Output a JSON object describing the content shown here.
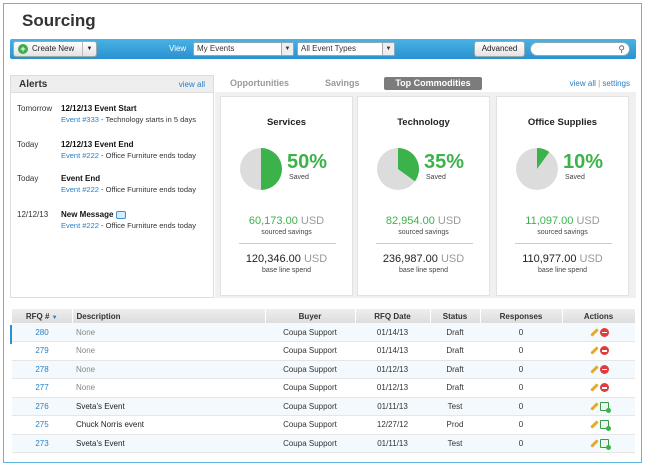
{
  "page": {
    "title": "Sourcing"
  },
  "toolbar": {
    "create_label": "Create New",
    "view_label": "View",
    "view_select": "My Events",
    "type_select": "All Event Types",
    "advanced_label": "Advanced",
    "search_value": ""
  },
  "alerts": {
    "title": "Alerts",
    "view_all": "view all",
    "items": [
      {
        "when": "Tomorrow",
        "head": "12/12/13 Event Start",
        "link": "Event #333",
        "rest": " - Technology starts in 5 days"
      },
      {
        "when": "Today",
        "head": "12/12/13 Event End",
        "link": "Event #222",
        "rest": " - Office Furniture ends today"
      },
      {
        "when": "Today",
        "head": "Event End",
        "link": "Event #222",
        "rest": " - Office Furniture ends today"
      },
      {
        "when": "12/12/13",
        "head": "New Message",
        "link": "Event #222",
        "rest": " - Office Furniture ends today"
      }
    ]
  },
  "tabs": {
    "opportunities": "Opportunities",
    "savings": "Savings",
    "top_commodities": "Top Commodities",
    "view_all": "view all",
    "separator": "|",
    "settings": "settings"
  },
  "commodities": [
    {
      "name": "Services",
      "percent": "50%",
      "fraction": 0.5,
      "saved": "Saved",
      "savings": "60,173.00",
      "savings_unit": "USD",
      "savings_label": "sourced savings",
      "base": "120,346.00",
      "base_unit": "USD",
      "base_label": "base line spend"
    },
    {
      "name": "Technology",
      "percent": "35%",
      "fraction": 0.35,
      "saved": "Saved",
      "savings": "82,954.00",
      "savings_unit": "USD",
      "savings_label": "sourced savings",
      "base": "236,987.00",
      "base_unit": "USD",
      "base_label": "base line spend"
    },
    {
      "name": "Office Supplies",
      "percent": "10%",
      "fraction": 0.1,
      "saved": "Saved",
      "savings": "11,097.00",
      "savings_unit": "USD",
      "savings_label": "sourced savings",
      "base": "110,977.00",
      "base_unit": "USD",
      "base_label": "base line spend"
    }
  ],
  "colors": {
    "accent": "#3cb34a",
    "pie_bg": "#dcdcdc",
    "toolbar": "#2a90cf",
    "link": "#2a7fc4"
  },
  "table": {
    "headers": [
      "RFQ #",
      "Description",
      "Buyer",
      "RFQ Date",
      "Status",
      "Responses",
      "Actions"
    ],
    "rows": [
      {
        "rfq": "280",
        "description": "None",
        "buyer": "Coupa Support",
        "date": "01/14/13",
        "status": "Draft",
        "responses": "0",
        "actions": [
          "pencil-icon",
          "delete-icon"
        ]
      },
      {
        "rfq": "279",
        "description": "None",
        "buyer": "Coupa Support",
        "date": "01/14/13",
        "status": "Draft",
        "responses": "0",
        "actions": [
          "pencil-icon",
          "delete-icon"
        ]
      },
      {
        "rfq": "278",
        "description": "None",
        "buyer": "Coupa Support",
        "date": "01/12/13",
        "status": "Draft",
        "responses": "0",
        "actions": [
          "pencil-icon",
          "delete-icon"
        ]
      },
      {
        "rfq": "277",
        "description": "None",
        "buyer": "Coupa Support",
        "date": "01/12/13",
        "status": "Draft",
        "responses": "0",
        "actions": [
          "pencil-icon",
          "delete-icon"
        ]
      },
      {
        "rfq": "276",
        "description": "Sveta's Event",
        "buyer": "Coupa Support",
        "date": "01/11/13",
        "status": "Test",
        "responses": "0",
        "actions": [
          "pencil-icon",
          "report-icon"
        ]
      },
      {
        "rfq": "275",
        "description": "Chuck Norris event",
        "buyer": "Coupa Support",
        "date": "12/27/12",
        "status": "Prod",
        "responses": "0",
        "actions": [
          "pencil-icon",
          "report-icon"
        ]
      },
      {
        "rfq": "273",
        "description": "Sveta's Event",
        "buyer": "Coupa Support",
        "date": "01/11/13",
        "status": "Test",
        "responses": "0",
        "actions": [
          "pencil-icon",
          "report-icon"
        ]
      }
    ]
  }
}
